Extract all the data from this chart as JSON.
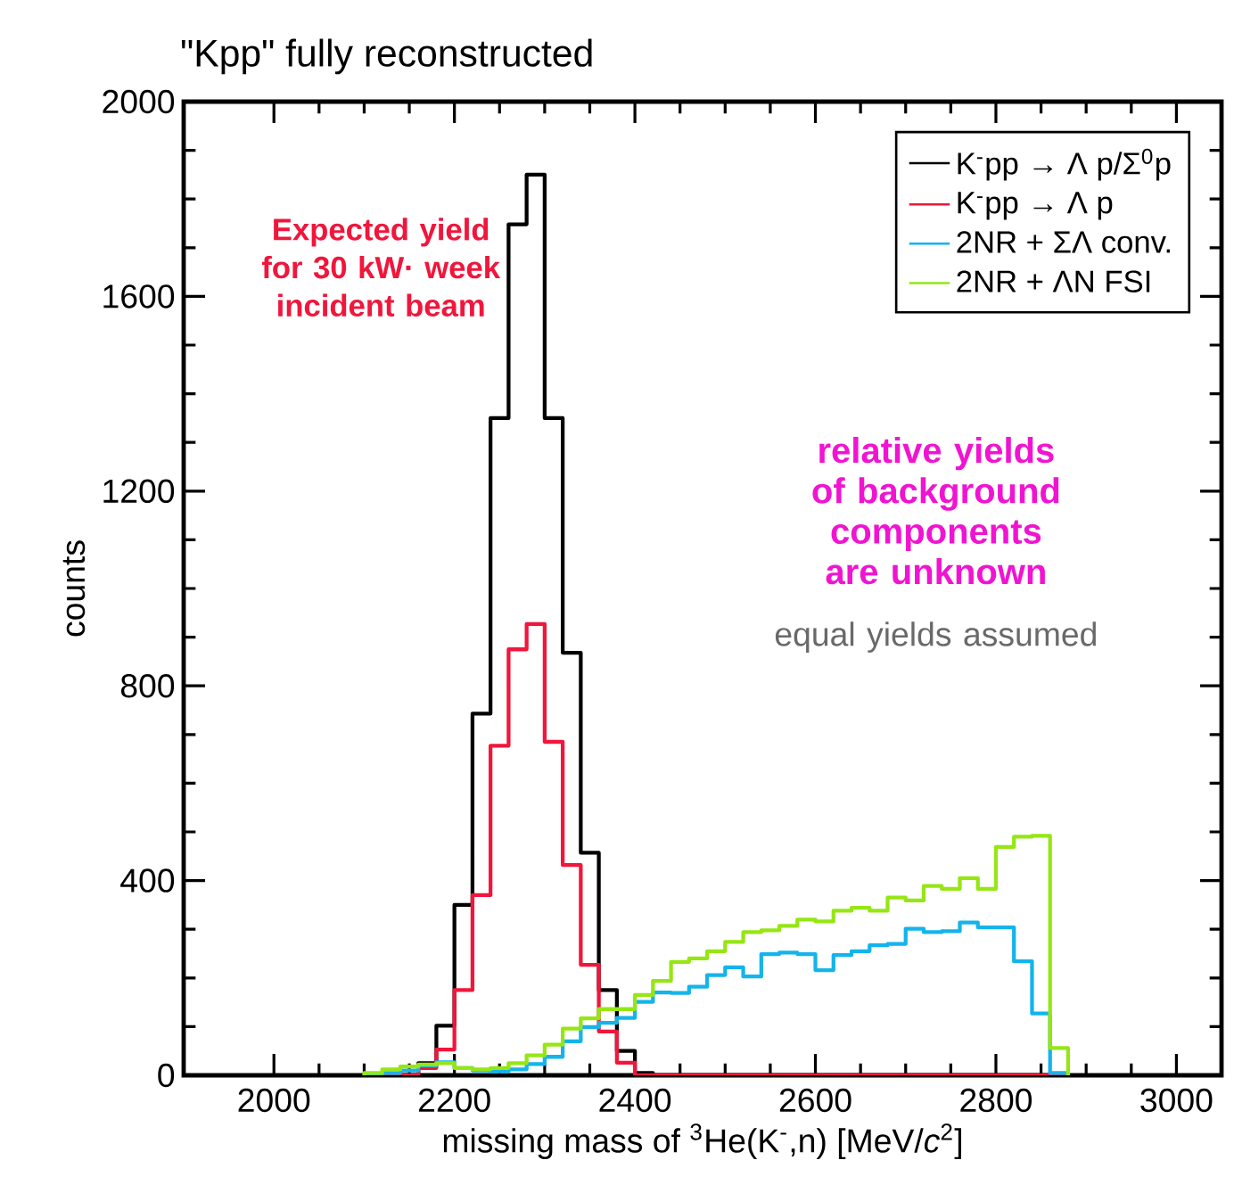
{
  "chart_data": {
    "type": "histogram",
    "title": "\"Kpp\" fully reconstructed",
    "xlabel": "missing mass of $^{3}$He(K$^{-}$,n) [MeV/*c*$^{2}$]",
    "ylabel": "counts",
    "bins": [
      2100,
      2120,
      2140,
      2160,
      2180,
      2200,
      2220,
      2240,
      2260,
      2280,
      2300,
      2320,
      2340,
      2360,
      2380,
      2400,
      2420,
      2440,
      2460,
      2480,
      2500,
      2520,
      2540,
      2560,
      2580,
      2600,
      2620,
      2640,
      2660,
      2680,
      2700,
      2720,
      2740,
      2760,
      2780,
      2800,
      2820,
      2840,
      2860,
      2880
    ],
    "series": [
      {
        "name": "K$^{-}$pp → Λ p/Σ$^{0}$p",
        "color": "#000000",
        "values": [
          0,
          0,
          0,
          25,
          102,
          350,
          743,
          1350,
          1748,
          1850,
          1350,
          868,
          457,
          175,
          50,
          5,
          0,
          0,
          0,
          0,
          0,
          0,
          0,
          0,
          0,
          0,
          0,
          0,
          0,
          0,
          0,
          0,
          0,
          0,
          0,
          0,
          0,
          0,
          0
        ]
      },
      {
        "name": "K$^{-}$pp → Λ p",
        "color": "#f0163c",
        "values": [
          0,
          0,
          0,
          15,
          53,
          175,
          370,
          677,
          875,
          927,
          685,
          432,
          227,
          90,
          26,
          0,
          0,
          0,
          0,
          0,
          0,
          0,
          0,
          0,
          0,
          0,
          0,
          0,
          0,
          0,
          0,
          0,
          0,
          0,
          0,
          0,
          0,
          0,
          0
        ]
      },
      {
        "name": "2NR + ΣΛ conv.",
        "color": "#14b4eb",
        "values": [
          0,
          5,
          10,
          20,
          27,
          15,
          10,
          8,
          12,
          23,
          38,
          70,
          99,
          108,
          118,
          151,
          170,
          169,
          182,
          206,
          222,
          203,
          249,
          252,
          249,
          216,
          247,
          255,
          267,
          270,
          301,
          294,
          296,
          314,
          304,
          304,
          234,
          127,
          5
        ]
      },
      {
        "name": "2NR + ΛN FSI",
        "color": "#96e614",
        "values": [
          5,
          12,
          18,
          22,
          25,
          15,
          12,
          15,
          25,
          41,
          63,
          96,
          117,
          136,
          136,
          165,
          194,
          233,
          240,
          255,
          274,
          294,
          298,
          307,
          320,
          316,
          338,
          344,
          338,
          365,
          359,
          389,
          383,
          405,
          383,
          469,
          490,
          492,
          56
        ]
      }
    ],
    "xlim": [
      1900,
      3050
    ],
    "ylim": [
      0,
      2000
    ],
    "xticks": [
      2000,
      2200,
      2400,
      2600,
      2800,
      3000
    ],
    "yticks": [
      0,
      400,
      800,
      1200,
      1600,
      2000
    ],
    "legend": "top right",
    "grid": false,
    "annotations": [
      "Expected yield for 30 kW· week incident beam",
      "relative yields of background components are unknown",
      "equal yields assumed"
    ]
  }
}
